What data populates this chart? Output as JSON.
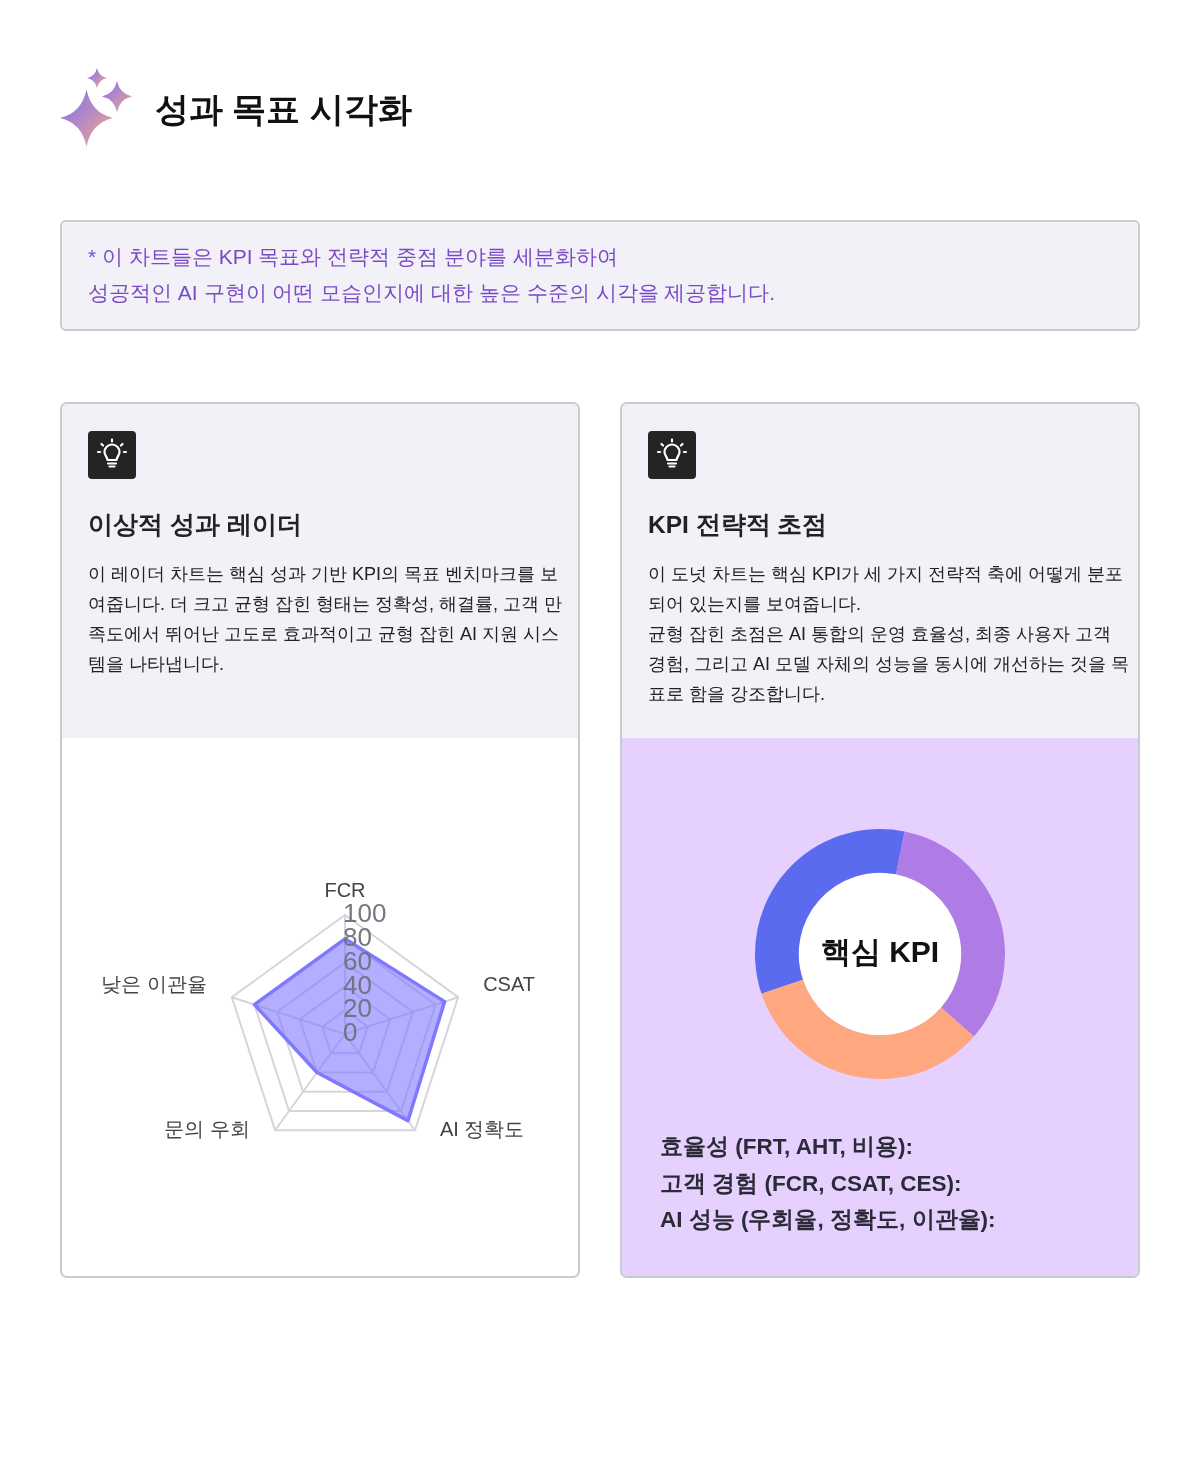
{
  "chart_data": [
    {
      "type": "other",
      "title": "성과 목표 시각화",
      "annotations": [
        "* 이 차트들은 KPI 목표와 전략적 중점 분야를 세분화하여",
        "성공적인 AI 구현이 어떤 모습인지에 대한 높은 수준의 시각을 제공합니다."
      ]
    },
    {
      "type": "radar",
      "title": "이상적 성과 레이더",
      "subtitle": "이 레이더 차트는 핵심 성과 기반 KPI의 목표 벤치마크를 보여줍니다. 더 크고 균형 잡힌 형태는 정확성, 해결률, 고객 만족도에서 뛰어난 고도로 효과적이고 균형 잡힌 AI 지원 시스템을 나타냅니다.",
      "categories": [
        "FCR",
        "CSAT",
        "AI 정확도",
        "문의 우회",
        "낮은 이관율"
      ],
      "series": [
        {
          "color": "#8078ff",
          "values": [
            80,
            88,
            90,
            40,
            80
          ]
        }
      ],
      "ylim": [
        0,
        100
      ],
      "yticks": [
        0,
        20,
        40,
        60,
        80,
        100
      ],
      "grid": true,
      "marker": "none"
    },
    {
      "type": "donut",
      "title": "KPI 전략적 초점",
      "subtitle": "이 도넛 차트는 핵심 KPI가 세 가지 전략적 축에 어떻게 분포되어 있는지를 보여줍니다.\n균형 잡힌 초점은 AI 통합의 운영 효율성, 최종 사용자 고객 경험, 그리고 AI 모델 자체의 성능을 동시에 개선하는 것을 목표로 함을 강조합니다.",
      "categories": [
        null,
        null,
        null
      ],
      "values": [
        33.3,
        33.3,
        33.4
      ],
      "colors": [
        "#5a6bf0",
        "#ae7ce4",
        "#ffa77e"
      ],
      "annotations": [
        "핵심 KPI",
        "효율성 (FRT, AHT, 비용):",
        "고객 경험 (FCR, CSAT, CES):",
        "AI 성능 (우회율, 정확도, 이관율):"
      ]
    }
  ]
}
